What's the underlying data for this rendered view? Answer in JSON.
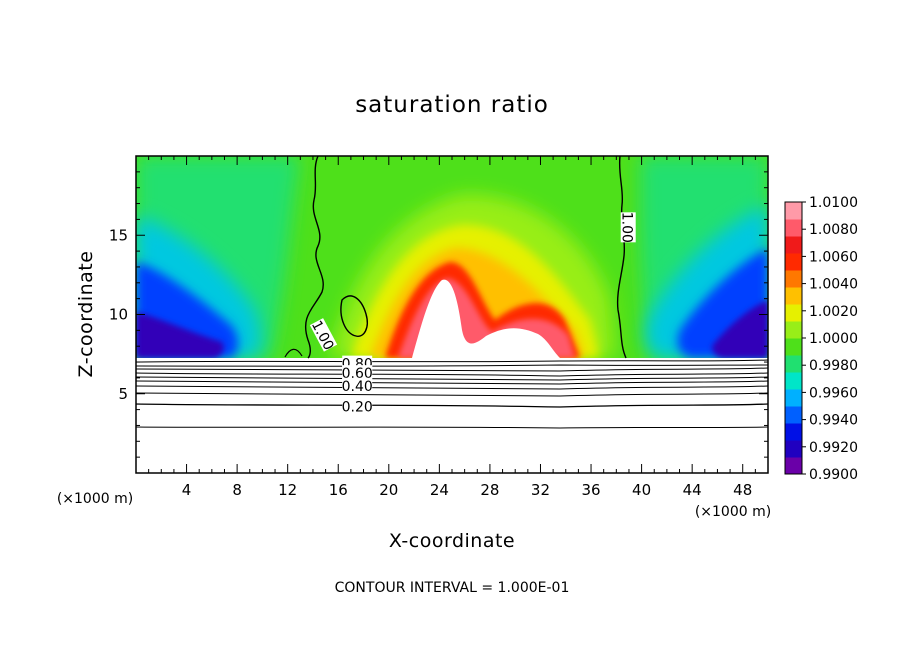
{
  "chart_data": {
    "type": "heatmap",
    "title": "saturation ratio",
    "xlabel": "X-coordinate",
    "ylabel": "Z-coordinate",
    "x_unit_left": "(×1000 m)",
    "x_unit_right": "(×1000 m)",
    "footer": "CONTOUR INTERVAL = 1.000E-01",
    "xlim": [
      0,
      50
    ],
    "ylim": [
      0,
      20
    ],
    "x_ticks": [
      4,
      8,
      12,
      16,
      20,
      24,
      28,
      32,
      36,
      40,
      44,
      48
    ],
    "y_ticks": [
      5,
      10,
      15
    ],
    "colorbar": {
      "min": 0.99,
      "max": 1.01,
      "labels": [
        "1.0100",
        "1.0080",
        "1.0060",
        "1.0040",
        "1.0020",
        "1.0000",
        "0.9980",
        "0.9960",
        "0.9940",
        "0.9920",
        "0.9900"
      ],
      "colors": [
        "#6a00a8",
        "#2000c0",
        "#0010e6",
        "#0060ff",
        "#00b0ff",
        "#00e5c8",
        "#20e070",
        "#4ee01a",
        "#98ee18",
        "#e6f000",
        "#ffc000",
        "#ff7800",
        "#ff2a00",
        "#f01a1a",
        "#ff5a6a",
        "#ff9aa8"
      ]
    },
    "contour_labels": [
      {
        "text": "1.00",
        "x": 14.8,
        "z": 8.7,
        "rotate": 62
      },
      {
        "text": "1.00",
        "x": 38.9,
        "z": 15.5,
        "rotate": 90
      },
      {
        "text": "0.80",
        "x": 17.5,
        "z": 6.9,
        "rotate": 0
      },
      {
        "text": "0.60",
        "x": 17.5,
        "z": 6.3,
        "rotate": 0
      },
      {
        "text": "0.40",
        "x": 17.5,
        "z": 5.5,
        "rotate": 0
      },
      {
        "text": "0.20",
        "x": 17.5,
        "z": 4.2,
        "rotate": 0
      }
    ]
  }
}
